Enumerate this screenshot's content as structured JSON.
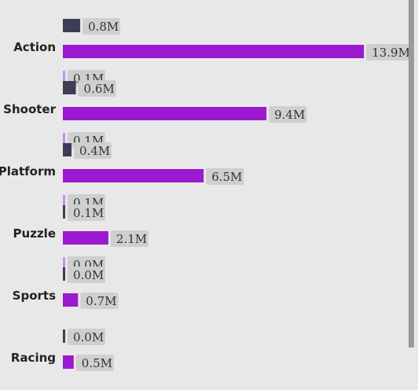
{
  "chart_data": {
    "type": "bar",
    "orientation": "horizontal",
    "categories": [
      "Action",
      "Shooter",
      "Platform",
      "Puzzle",
      "Sports",
      "Racing"
    ],
    "series": [
      {
        "color": "#3d3d56",
        "values": [
          0.8,
          0.6,
          0.4,
          0.1,
          0.0,
          0.0
        ],
        "labels": [
          "0.8M",
          "0.6M",
          "0.4M",
          "0.1M",
          "0.0M",
          "0.0M"
        ]
      },
      {
        "color": "#9b19d0",
        "values": [
          13.9,
          9.4,
          6.5,
          2.1,
          0.7,
          0.5
        ],
        "labels": [
          "13.9M",
          "9.4M",
          "6.5M",
          "2.1M",
          "0.7M",
          "0.5M"
        ]
      },
      {
        "color": "#c88df0",
        "values": [
          0.1,
          0.1,
          0.1,
          0.0,
          null,
          null
        ],
        "labels": [
          "0.1M",
          "0.1M",
          "0.1M",
          "0.0M",
          "",
          ""
        ]
      }
    ],
    "xlim": [
      0,
      14.8
    ],
    "grid": false,
    "legend": "none"
  }
}
